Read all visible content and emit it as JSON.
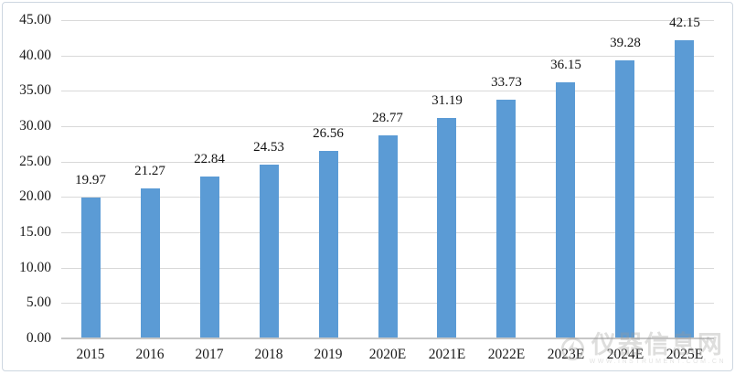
{
  "chart_data": {
    "type": "bar",
    "title": "",
    "xlabel": "",
    "ylabel": "",
    "categories": [
      "2015",
      "2016",
      "2017",
      "2018",
      "2019",
      "2020E",
      "2021E",
      "2022E",
      "2023E",
      "2024E",
      "2025E"
    ],
    "values": [
      19.97,
      21.27,
      22.84,
      24.53,
      26.56,
      28.77,
      31.19,
      33.73,
      36.15,
      39.28,
      42.15
    ],
    "value_labels": [
      "19.97",
      "21.27",
      "22.84",
      "24.53",
      "26.56",
      "28.77",
      "31.19",
      "33.73",
      "36.15",
      "39.28",
      "42.15"
    ],
    "y_ticks": [
      "0.00",
      "5.00",
      "10.00",
      "15.00",
      "20.00",
      "25.00",
      "30.00",
      "35.00",
      "40.00",
      "45.00"
    ],
    "ylim": [
      0,
      45
    ],
    "grid": "horizontal-on",
    "legend": "none",
    "data_labels": "above-bars"
  },
  "colors": {
    "bar": "#5b9bd5",
    "gridline": "#d9d9d9",
    "axis_line": "#c6c6c6",
    "label_text": "#1a1a1a",
    "frame_border": "#cdd6e0",
    "watermark": "#9a9a98"
  },
  "watermark": {
    "logo_icon": "instrument-site-logo-icon",
    "text": "仪器信息网",
    "subtext": "WWW.INSTRUMENT.COM.CN"
  }
}
